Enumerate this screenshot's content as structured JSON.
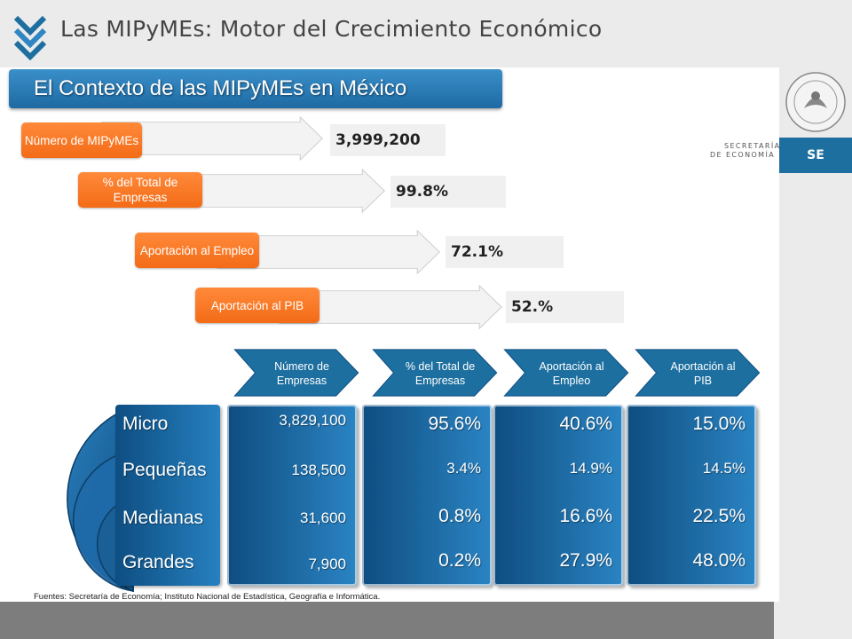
{
  "header": {
    "title": "Las MIPyMEs: Motor del Crecimiento Económico"
  },
  "subtitle": "El Contexto de las MIPyMEs en México",
  "branding": {
    "secretaria_line1": "SECRETARÍA",
    "secretaria_line2": "DE ECONOMÍA",
    "se": "SE"
  },
  "top_rows": [
    {
      "label": "Número de MIPyMEs",
      "value": "3,999,200"
    },
    {
      "label": "% del Total de Empresas",
      "value": "99.8%"
    },
    {
      "label": "Aportación al Empleo",
      "value": "72.1%"
    },
    {
      "label": "Aportación al PIB",
      "value": "52.%"
    }
  ],
  "table_headers": [
    {
      "label": "Número de Empresas"
    },
    {
      "label": "% del Total de Empresas"
    },
    {
      "label": "Aportación al Empleo"
    },
    {
      "label": "Aportación al PIB"
    }
  ],
  "categories": [
    "Micro",
    "Pequeñas",
    "Medianas",
    "Grandes"
  ],
  "columns": [
    {
      "values": [
        "3,829,100",
        "138,500",
        "31,600",
        "7,900"
      ]
    },
    {
      "values": [
        "95.6%",
        "3.4%",
        "0.8%",
        "0.2%"
      ]
    },
    {
      "values": [
        "40.6%",
        "14.9%",
        "16.6%",
        "27.9%"
      ]
    },
    {
      "values": [
        "15.0%",
        "14.5%",
        "22.5%",
        "48.0%"
      ]
    }
  ],
  "footnote": "Fuentes:  Secretaría de Economía; Instituto Nacional de Estadística, Geografía e Informática.",
  "colors": {
    "accent_blue": "#1d6fa0",
    "orange": "#f36b16",
    "header_gray": "#ebebeb",
    "footer_gray": "#7d7d7d"
  }
}
